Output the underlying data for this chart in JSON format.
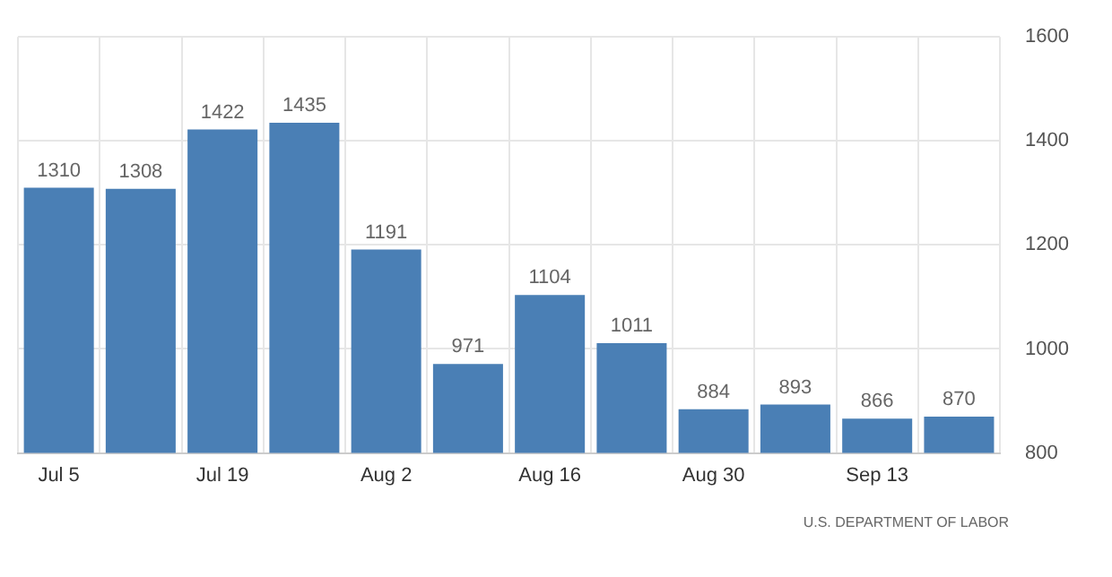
{
  "chart_data": {
    "type": "bar",
    "categories": [
      "Jul 5",
      null,
      "Jul 19",
      null,
      "Aug 2",
      null,
      "Aug 16",
      null,
      "Aug 30",
      null,
      "Sep 13",
      null
    ],
    "values": [
      1310,
      1308,
      1422,
      1435,
      1191,
      971,
      1104,
      1011,
      884,
      893,
      866,
      870
    ],
    "color": "#4a7fb5",
    "ylim": [
      800,
      1600
    ],
    "yticks": [
      800,
      1000,
      1200,
      1400,
      1600
    ],
    "grid": true,
    "data_labels": true,
    "annotations": [
      "U.S. DEPARTMENT OF LABOR"
    ]
  }
}
